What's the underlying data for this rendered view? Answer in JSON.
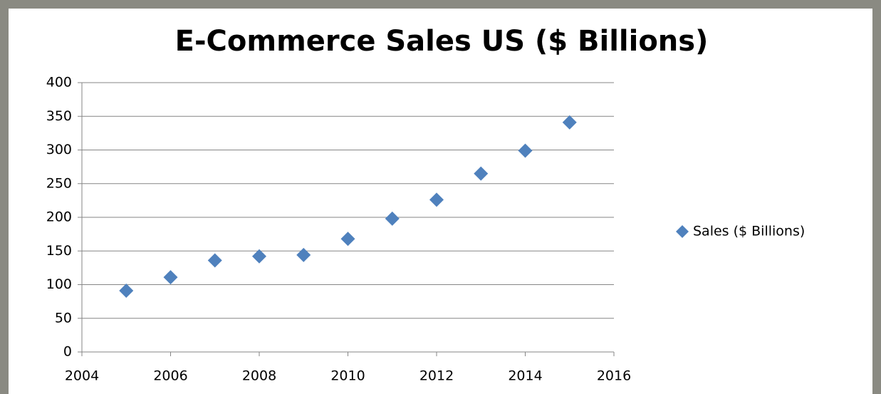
{
  "chart_data": {
    "type": "scatter",
    "title": "E-Commerce Sales US ($ Billions)",
    "x": [
      2005,
      2006,
      2007,
      2008,
      2009,
      2010,
      2011,
      2012,
      2013,
      2014,
      2015
    ],
    "series": [
      {
        "name": "Sales ($ Billions)",
        "color": "#4f81bd",
        "values": [
          91,
          111,
          136,
          142,
          144,
          168,
          198,
          226,
          265,
          299,
          341
        ]
      }
    ],
    "xlim": [
      2004,
      2016
    ],
    "xticks": [
      2004,
      2006,
      2008,
      2010,
      2012,
      2014,
      2016
    ],
    "ylim": [
      0,
      400
    ],
    "yticks": [
      0,
      50,
      100,
      150,
      200,
      250,
      300,
      350,
      400
    ],
    "grid": true,
    "legend": "right"
  }
}
